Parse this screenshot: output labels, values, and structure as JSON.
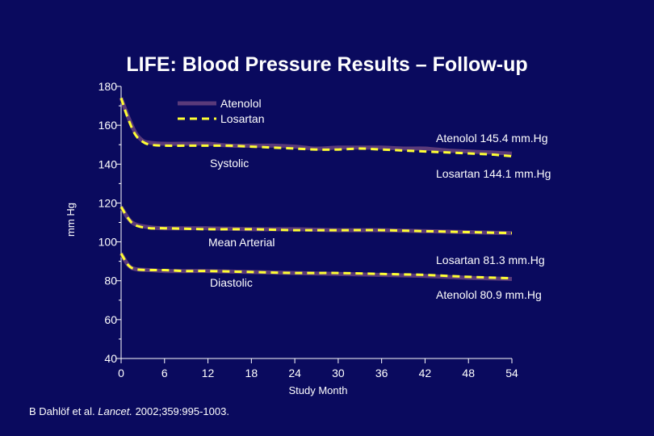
{
  "chart_data": {
    "type": "line",
    "title": "LIFE: Blood Pressure Results – Follow-up",
    "xlabel": "Study Month",
    "ylabel": "mm Hg",
    "xlim": [
      0,
      54
    ],
    "ylim": [
      40,
      180
    ],
    "xticks": [
      0,
      6,
      12,
      18,
      24,
      30,
      36,
      42,
      48,
      54
    ],
    "yticks": [
      40,
      60,
      80,
      100,
      120,
      140,
      160,
      180
    ],
    "grid": false,
    "legend": "top-center",
    "series": [
      {
        "name": "Atenolol",
        "group": "Systolic",
        "style": "solid",
        "color": "#5a3a7a",
        "x": [
          0,
          1,
          2,
          3,
          4,
          6,
          9,
          12,
          15,
          18,
          21,
          24,
          27,
          30,
          33,
          36,
          39,
          42,
          45,
          48,
          51,
          54
        ],
        "y": [
          174,
          164,
          156,
          152,
          151,
          150.5,
          150.5,
          150.5,
          149.5,
          149.5,
          149.5,
          149,
          148,
          148.5,
          148.5,
          148.5,
          148,
          148,
          147,
          146.5,
          146,
          145.4
        ]
      },
      {
        "name": "Losartan",
        "group": "Systolic",
        "style": "dashed",
        "color": "#ffff33",
        "x": [
          0,
          1,
          2,
          3,
          4,
          6,
          9,
          12,
          15,
          18,
          21,
          24,
          27,
          30,
          33,
          36,
          39,
          42,
          45,
          48,
          51,
          54
        ],
        "y": [
          174,
          163,
          155,
          151.5,
          150,
          149.5,
          149.5,
          149.5,
          149.5,
          149,
          148.5,
          148,
          147.5,
          147.5,
          148,
          147.5,
          147,
          146.5,
          146,
          145.5,
          145,
          144.1
        ]
      },
      {
        "name": "Atenolol",
        "group": "Mean Arterial",
        "style": "solid",
        "color": "#5a3a7a",
        "x": [
          0,
          1,
          2,
          4,
          6,
          12,
          18,
          24,
          30,
          36,
          42,
          48,
          54
        ],
        "y": [
          118,
          112,
          109,
          107.5,
          107,
          107,
          106.5,
          106.5,
          106,
          106,
          105.5,
          105,
          104.5
        ]
      },
      {
        "name": "Losartan",
        "group": "Mean Arterial",
        "style": "dashed",
        "color": "#ffff33",
        "x": [
          0,
          1,
          2,
          4,
          6,
          12,
          18,
          24,
          30,
          36,
          42,
          48,
          54
        ],
        "y": [
          118,
          112,
          108.5,
          107,
          107,
          106.5,
          106.5,
          106,
          106,
          106,
          105.5,
          105,
          104.5
        ]
      },
      {
        "name": "Atenolol",
        "group": "Diastolic",
        "style": "solid",
        "color": "#5a3a7a",
        "x": [
          0,
          1,
          2,
          4,
          6,
          9,
          12,
          18,
          24,
          30,
          36,
          42,
          48,
          54
        ],
        "y": [
          94,
          88,
          86,
          85.5,
          85,
          85,
          85,
          84.5,
          84,
          83.5,
          83,
          82.5,
          81.5,
          80.9
        ]
      },
      {
        "name": "Losartan",
        "group": "Diastolic",
        "style": "dashed",
        "color": "#ffff33",
        "x": [
          0,
          1,
          2,
          4,
          6,
          9,
          12,
          18,
          24,
          30,
          36,
          42,
          48,
          54
        ],
        "y": [
          94,
          88,
          86,
          85.5,
          85.5,
          85,
          85,
          84.5,
          84,
          84,
          83.5,
          83,
          82,
          81.3
        ]
      }
    ],
    "group_labels": [
      "Systolic",
      "Mean Arterial",
      "Diastolic"
    ],
    "end_labels": [
      "Atenolol 145.4 mm.Hg",
      "Losartan 144.1 mm.Hg",
      "Losartan 81.3 mm.Hg",
      "Atenolol 80.9 mm.Hg"
    ]
  },
  "legend": {
    "items": [
      {
        "label": "Atenolol",
        "style": "solid",
        "color": "#5a3a7a"
      },
      {
        "label": "Losartan",
        "style": "dashed",
        "color": "#ffff33"
      }
    ]
  },
  "citation": {
    "authors": "B Dahlöf et al.",
    "journal": "Lancet.",
    "details": "2002;359:995-1003."
  },
  "colors": {
    "background": "#0a0a5e",
    "atenolol": "#5a3a7a",
    "losartan": "#ffff33",
    "text": "#ffffff"
  }
}
